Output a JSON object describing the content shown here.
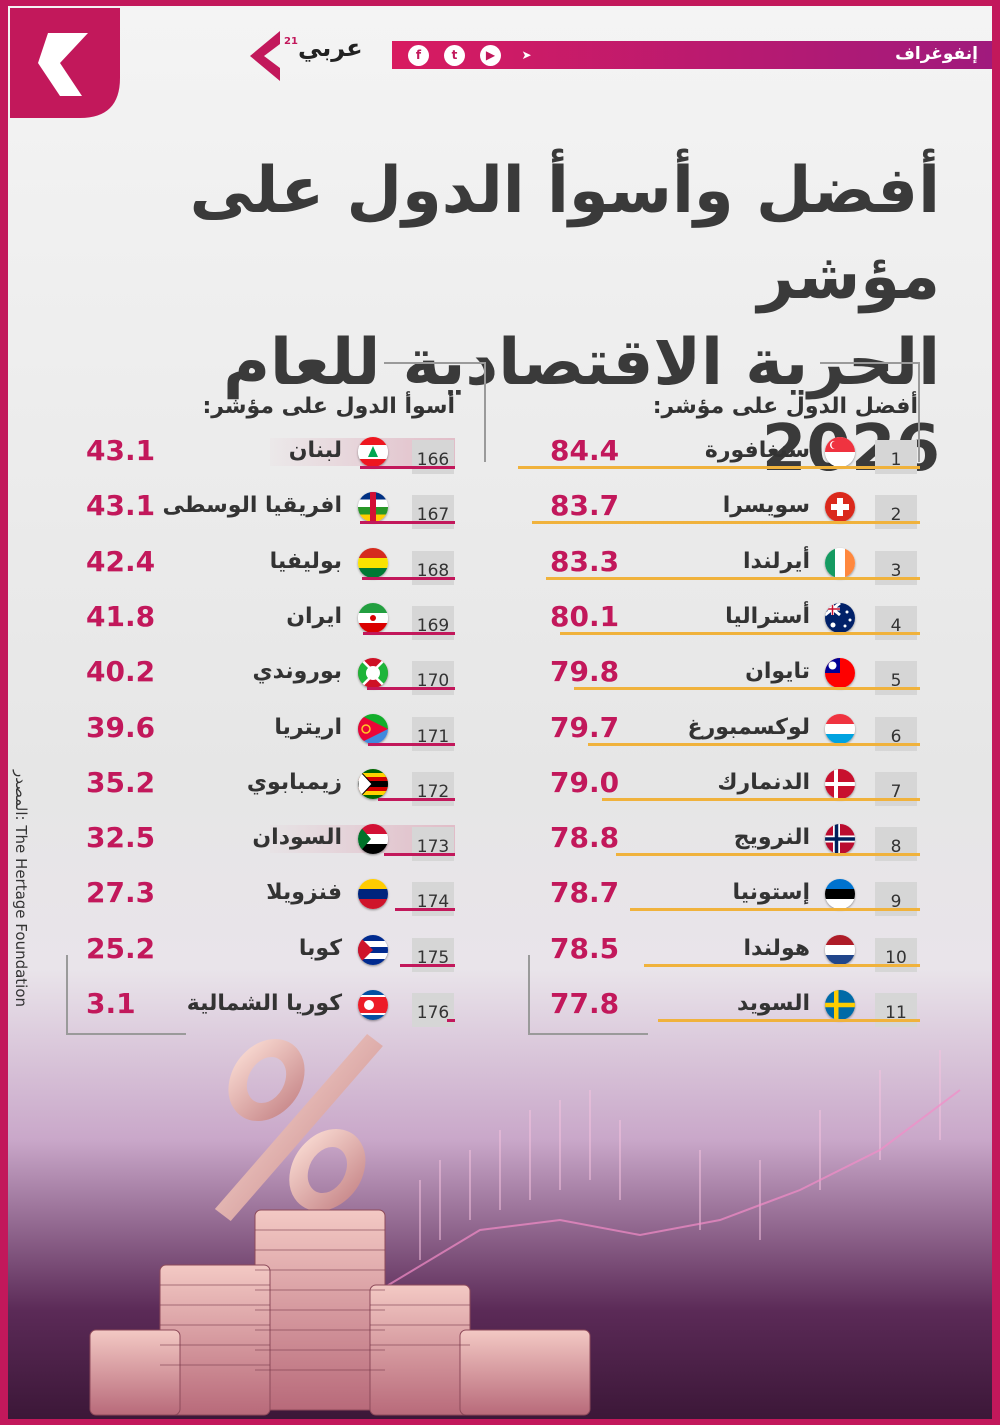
{
  "header": {
    "section_label": "إنفوغراف",
    "brand_name": "عربي",
    "brand_sup": "21",
    "social": [
      "f",
      "t",
      "▶",
      "➤"
    ]
  },
  "title_lines": [
    "أفضل وأسوأ الدول على مؤشر",
    "الحرية الاقتصادية للعام 2026"
  ],
  "source": "المصدر: The Hertage Foundation",
  "colors": {
    "accent": "#c2185b",
    "best_underline": "#f0b23c",
    "worst_underline": "#c2185b"
  },
  "chart_data": [
    {
      "type": "table",
      "title": "أفضل الدول على مؤشر:",
      "columns": [
        "rank",
        "country",
        "flag",
        "score"
      ],
      "rows": [
        {
          "rank": "1",
          "country": "سنغافورة",
          "flag": "singapore",
          "score": "84.4"
        },
        {
          "rank": "2",
          "country": "سويسرا",
          "flag": "switzerland",
          "score": "83.7"
        },
        {
          "rank": "3",
          "country": "أيرلندا",
          "flag": "ireland",
          "score": "83.3"
        },
        {
          "rank": "4",
          "country": "أستراليا",
          "flag": "australia",
          "score": "80.1"
        },
        {
          "rank": "5",
          "country": "تايوان",
          "flag": "taiwan",
          "score": "79.8"
        },
        {
          "rank": "6",
          "country": "لوكسمبورغ",
          "flag": "luxembourg",
          "score": "79.7"
        },
        {
          "rank": "7",
          "country": "الدنمارك",
          "flag": "denmark",
          "score": "79.0"
        },
        {
          "rank": "8",
          "country": "النرويج",
          "flag": "norway",
          "score": "78.8"
        },
        {
          "rank": "9",
          "country": "إستونيا",
          "flag": "estonia",
          "score": "78.7"
        },
        {
          "rank": "10",
          "country": "هولندا",
          "flag": "netherlands",
          "score": "78.5"
        },
        {
          "rank": "11",
          "country": "السويد",
          "flag": "sweden",
          "score": "77.8"
        }
      ]
    },
    {
      "type": "table",
      "title": "أسوأ الدول على مؤشر:",
      "columns": [
        "rank",
        "country",
        "flag",
        "score"
      ],
      "rows": [
        {
          "rank": "166",
          "country": "لبنان",
          "flag": "lebanon",
          "score": "43.1",
          "highlight": true
        },
        {
          "rank": "167",
          "country": "افريقيا الوسطى",
          "flag": "car",
          "score": "43.1"
        },
        {
          "rank": "168",
          "country": "بوليفيا",
          "flag": "bolivia",
          "score": "42.4"
        },
        {
          "rank": "169",
          "country": "ايران",
          "flag": "iran",
          "score": "41.8"
        },
        {
          "rank": "170",
          "country": "بوروندي",
          "flag": "burundi",
          "score": "40.2"
        },
        {
          "rank": "171",
          "country": "اريتريا",
          "flag": "eritrea",
          "score": "39.6"
        },
        {
          "rank": "172",
          "country": "زيمبابوي",
          "flag": "zimbabwe",
          "score": "35.2"
        },
        {
          "rank": "173",
          "country": "السودان",
          "flag": "sudan",
          "score": "32.5",
          "highlight": true
        },
        {
          "rank": "174",
          "country": "فنزويلا",
          "flag": "venezuela",
          "score": "27.3"
        },
        {
          "rank": "175",
          "country": "كوبا",
          "flag": "cuba",
          "score": "25.2"
        },
        {
          "rank": "176",
          "country": "كوريا الشمالية",
          "flag": "north-korea",
          "score": "3.1"
        }
      ]
    }
  ]
}
